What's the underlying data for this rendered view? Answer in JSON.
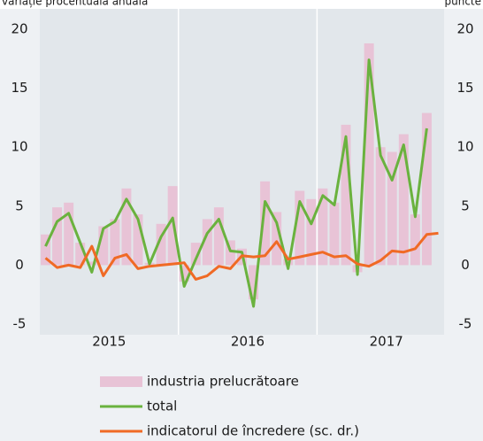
{
  "chart_data": {
    "type": "bar_line",
    "ylabel": "variație procentuală anuală",
    "y2label": "puncte",
    "x_groups": [
      "2015",
      "2016",
      "2017"
    ],
    "categories": [
      null,
      null,
      null,
      null,
      null,
      null,
      null,
      null,
      null,
      null,
      null,
      null,
      null,
      null,
      null,
      null,
      null,
      null,
      null,
      null,
      null,
      null,
      null,
      null,
      null,
      null,
      null,
      null,
      null,
      null,
      null,
      null,
      null,
      null,
      null
    ],
    "series": [
      {
        "name": "industria prelucrătoare",
        "color": "#e8c3d6",
        "kind": "bar",
        "values": [
          2.6,
          4.9,
          5.3,
          1.9,
          0.3,
          3.3,
          3.9,
          6.5,
          4.3,
          0.2,
          3.5,
          6.7,
          -1.4,
          1.9,
          3.9,
          4.9,
          2.1,
          1.4,
          -2.9,
          7.1,
          4.5,
          0.5,
          6.3,
          5.6,
          6.5,
          5.3,
          11.9,
          -0.6,
          18.8,
          10.0,
          9.6,
          11.1,
          4.3,
          12.9,
          null
        ]
      },
      {
        "name": "total",
        "color": "#6ab23e",
        "kind": "line",
        "values": [
          1.6,
          3.7,
          4.4,
          1.9,
          -0.6,
          3.1,
          3.7,
          5.6,
          3.9,
          0.1,
          2.4,
          4.0,
          -1.8,
          0.5,
          2.7,
          3.9,
          1.2,
          1.1,
          -3.5,
          5.4,
          3.6,
          -0.3,
          5.4,
          3.5,
          5.9,
          5.1,
          10.9,
          -0.8,
          17.4,
          9.3,
          7.2,
          10.2,
          4.1,
          11.6,
          null
        ]
      },
      {
        "name": "indicatorul de încredere (sc. dr.)",
        "color": "#f06a25",
        "kind": "line",
        "axis": "y2",
        "values": [
          0.6,
          -0.2,
          0.0,
          -0.2,
          1.6,
          -0.9,
          0.6,
          0.9,
          -0.3,
          -0.1,
          0.0,
          0.1,
          0.2,
          -1.2,
          -0.9,
          -0.1,
          -0.3,
          0.8,
          0.7,
          0.8,
          2.0,
          0.5,
          0.7,
          0.9,
          1.1,
          0.7,
          0.8,
          0.1,
          -0.1,
          0.4,
          1.2,
          1.1,
          1.4,
          2.6,
          2.7
        ]
      }
    ],
    "ylim": [
      -5,
      20
    ],
    "yticks": [
      -5,
      0,
      5,
      10,
      15,
      20
    ],
    "y2lim": [
      -5,
      20
    ],
    "y2ticks": [
      -5,
      0,
      5,
      10,
      15,
      20
    ]
  }
}
